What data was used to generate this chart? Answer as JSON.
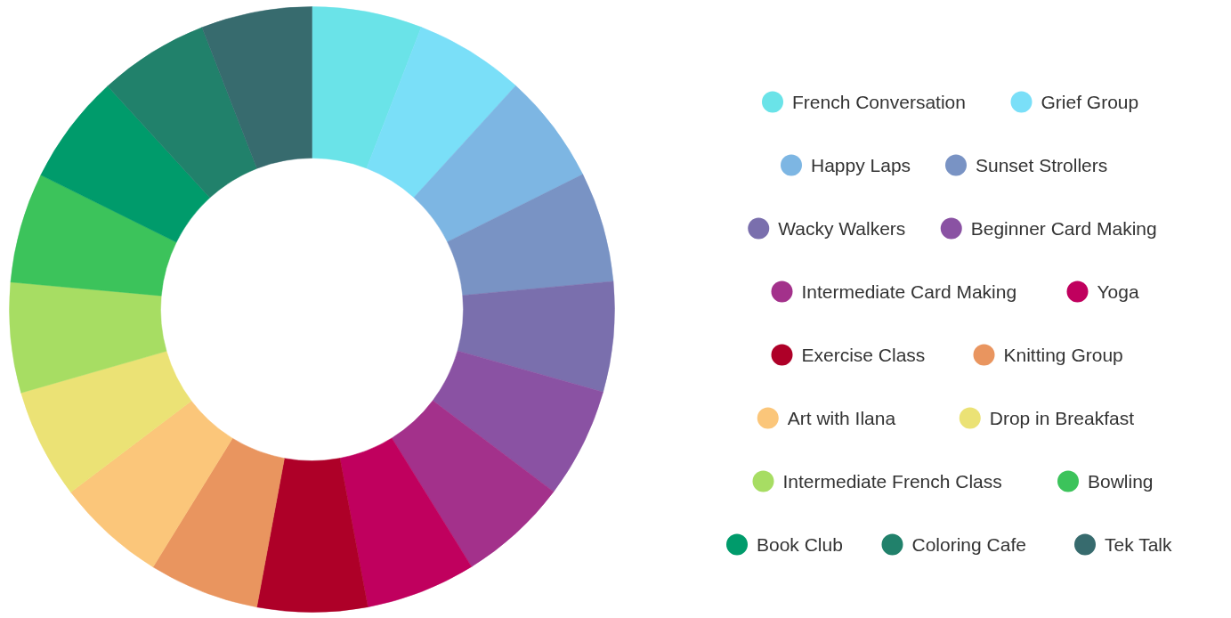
{
  "chart_data": {
    "type": "donut",
    "legend": "right",
    "categories": [
      "French Conversation",
      "Grief Group",
      "Happy Laps",
      "Sunset Strollers",
      "Wacky Walkers",
      "Beginner Card Making",
      "Intermediate Card Making",
      "Yoga",
      "Exercise Class",
      "Knitting Group",
      "Art with Ilana",
      "Drop in Breakfast",
      "Intermediate French Class",
      "Bowling",
      "Book Club",
      "Coloring Cafe",
      "Tek Talk"
    ],
    "values": [
      5.88,
      5.88,
      5.88,
      5.88,
      5.88,
      5.88,
      5.88,
      5.88,
      5.88,
      5.88,
      5.88,
      5.88,
      5.88,
      5.88,
      5.88,
      5.88,
      5.92
    ],
    "colors": [
      "#6ae3e8",
      "#7adff8",
      "#7db6e3",
      "#7993c4",
      "#7a6fad",
      "#8a52a3",
      "#a3318b",
      "#c0005e",
      "#ae0028",
      "#e9955f",
      "#fbc67a",
      "#ebe275",
      "#a7dd63",
      "#3cc35b",
      "#009b6b",
      "#21816b",
      "#376b6e"
    ]
  }
}
